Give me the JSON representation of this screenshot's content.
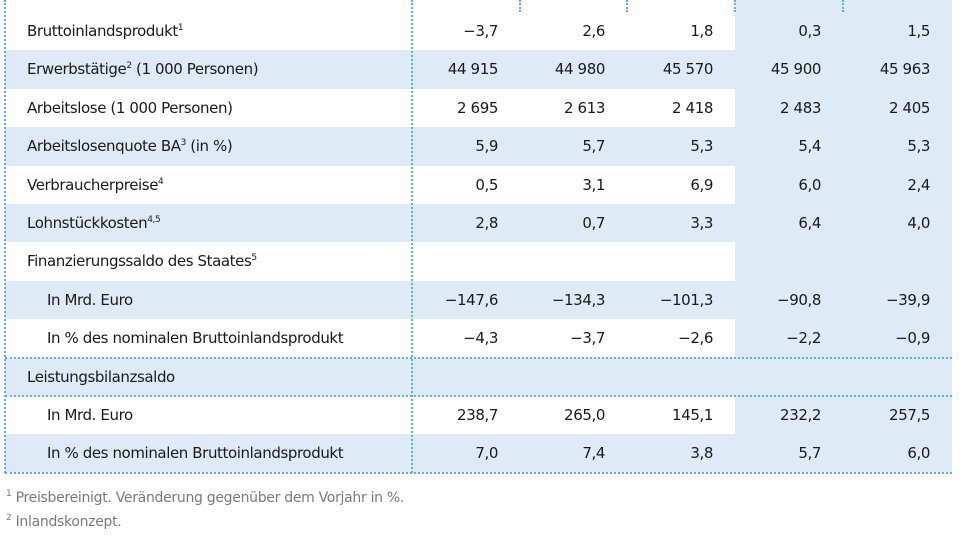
{
  "table": {
    "rows": [
      {
        "label": "Bruttoinlandsprodukt",
        "note": "1",
        "values": [
          "−3,7",
          "2,6",
          "1,8",
          "0,3",
          "1,5"
        ]
      },
      {
        "label": "Erwerbstätige",
        "note": "2",
        "label_rest": " (1 000 Personen)",
        "values": [
          "44 915",
          "44 980",
          "45 570",
          "45 900",
          "45 963"
        ]
      },
      {
        "label": "Arbeitslose (1 000 Personen)",
        "values": [
          "2 695",
          "2 613",
          "2 418",
          "2 483",
          "2 405"
        ]
      },
      {
        "label": "Arbeitslosenquote BA",
        "note": "3",
        "label_rest": " (in %)",
        "values": [
          "5,9",
          "5,7",
          "5,3",
          "5,4",
          "5,3"
        ]
      },
      {
        "label": "Verbraucherpreise",
        "note": "4",
        "values": [
          "0,5",
          "3,1",
          "6,9",
          "6,0",
          "2,4"
        ]
      },
      {
        "label": "Lohnstückkosten",
        "note": "4,5",
        "values": [
          "2,8",
          "0,7",
          "3,3",
          "6,4",
          "4,0"
        ]
      },
      {
        "label": "Finanzierungssaldo des Staates",
        "note": "5"
      },
      {
        "label": "In Mrd. Euro",
        "values": [
          "−147,6",
          "−134,3",
          "−101,3",
          "−90,8",
          "−39,9"
        ]
      },
      {
        "label": "In % des nominalen Bruttoinlandsprodukt",
        "values": [
          "−4,3",
          "−3,7",
          "−2,6",
          "−2,2",
          "−0,9"
        ]
      },
      {
        "label": "Leistungsbilanzsaldo"
      },
      {
        "label": "In Mrd. Euro",
        "values": [
          "238,7",
          "265,0",
          "145,1",
          "232,2",
          "257,5"
        ]
      },
      {
        "label": "In % des nominalen Bruttoinlandsprodukt",
        "values": [
          "7,0",
          "7,4",
          "3,8",
          "5,7",
          "6,0"
        ]
      }
    ]
  },
  "footnotes": [
    {
      "mark": "1",
      "text": "Preisbereinigt. Veränderung gegenüber dem Vorjahr in %."
    },
    {
      "mark": "2",
      "text": "Inlandskonzept."
    }
  ]
}
